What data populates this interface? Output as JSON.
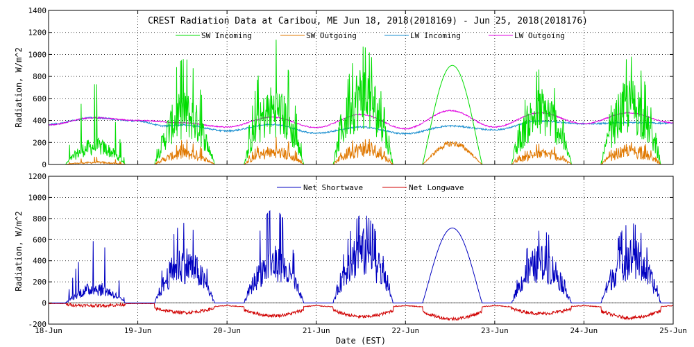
{
  "chart_data": [
    {
      "type": "line",
      "title": "CREST Radiation Data at Caribou, ME   Jun 18, 2018(2018169) - Jun 25, 2018(2018176)",
      "ylabel": "Radiation, W/m^2",
      "ylim": [
        0,
        1400
      ],
      "yticks": [
        "0",
        "200",
        "400",
        "600",
        "800",
        "1000",
        "1200",
        "1400"
      ],
      "grid": true,
      "series": [
        {
          "name": "SW Incoming",
          "color": "#00dd00",
          "daily_peak": [
            730,
            960,
            1140,
            1070,
            900,
            870,
            980
          ],
          "daily_typical": [
            230,
            640,
            700,
            880,
            900,
            680,
            760
          ],
          "smooth": [
            false,
            false,
            false,
            false,
            true,
            false,
            false
          ]
        },
        {
          "name": "SW Outgoing",
          "color": "#e07800",
          "daily_peak": [
            80,
            200,
            250,
            230,
            190,
            180,
            220
          ]
        },
        {
          "name": "LW Incoming",
          "color": "#1a8fd0",
          "x": [
            0,
            0.5,
            1.0,
            1.3,
            1.5,
            2.0,
            2.5,
            3.0,
            3.5,
            4.0,
            4.5,
            5.0,
            5.5,
            6.0,
            6.5,
            7.0
          ],
          "y": [
            365,
            425,
            395,
            350,
            360,
            305,
            365,
            285,
            340,
            280,
            350,
            315,
            395,
            370,
            380,
            375
          ]
        },
        {
          "name": "LW Outgoing",
          "color": "#e000e0",
          "x": [
            0,
            0.5,
            1.0,
            1.5,
            2.0,
            2.5,
            3.0,
            3.5,
            4.0,
            4.5,
            5.0,
            5.5,
            6.0,
            6.5,
            7.0
          ],
          "y": [
            360,
            425,
            400,
            380,
            340,
            430,
            335,
            455,
            325,
            490,
            340,
            470,
            370,
            470,
            380
          ]
        }
      ]
    },
    {
      "type": "line",
      "ylabel": "Radiation, W/m^2",
      "xlabel": "Date (EST)",
      "ylim": [
        -200,
        1200
      ],
      "yticks": [
        "-200",
        "0",
        "200",
        "400",
        "600",
        "800",
        "1000",
        "1200"
      ],
      "grid": true,
      "series": [
        {
          "name": "Net Shortwave",
          "color": "#0000c0",
          "daily_peak": [
            590,
            760,
            890,
            840,
            710,
            690,
            760
          ],
          "daily_typical": [
            190,
            520,
            520,
            680,
            710,
            530,
            600
          ],
          "smooth": [
            false,
            false,
            false,
            false,
            true,
            false,
            false
          ]
        },
        {
          "name": "Net Longwave",
          "color": "#d00000",
          "daily_trough": [
            -25,
            -90,
            -120,
            -130,
            -150,
            -100,
            -140
          ]
        }
      ]
    }
  ],
  "x_axis": {
    "tick_labels": [
      "18-Jun",
      "19-Jun",
      "20-Jun",
      "21-Jun",
      "22-Jun",
      "23-Jun",
      "24-Jun",
      "25-Jun"
    ],
    "label": "Date (EST)",
    "range_days": [
      0,
      7
    ]
  }
}
